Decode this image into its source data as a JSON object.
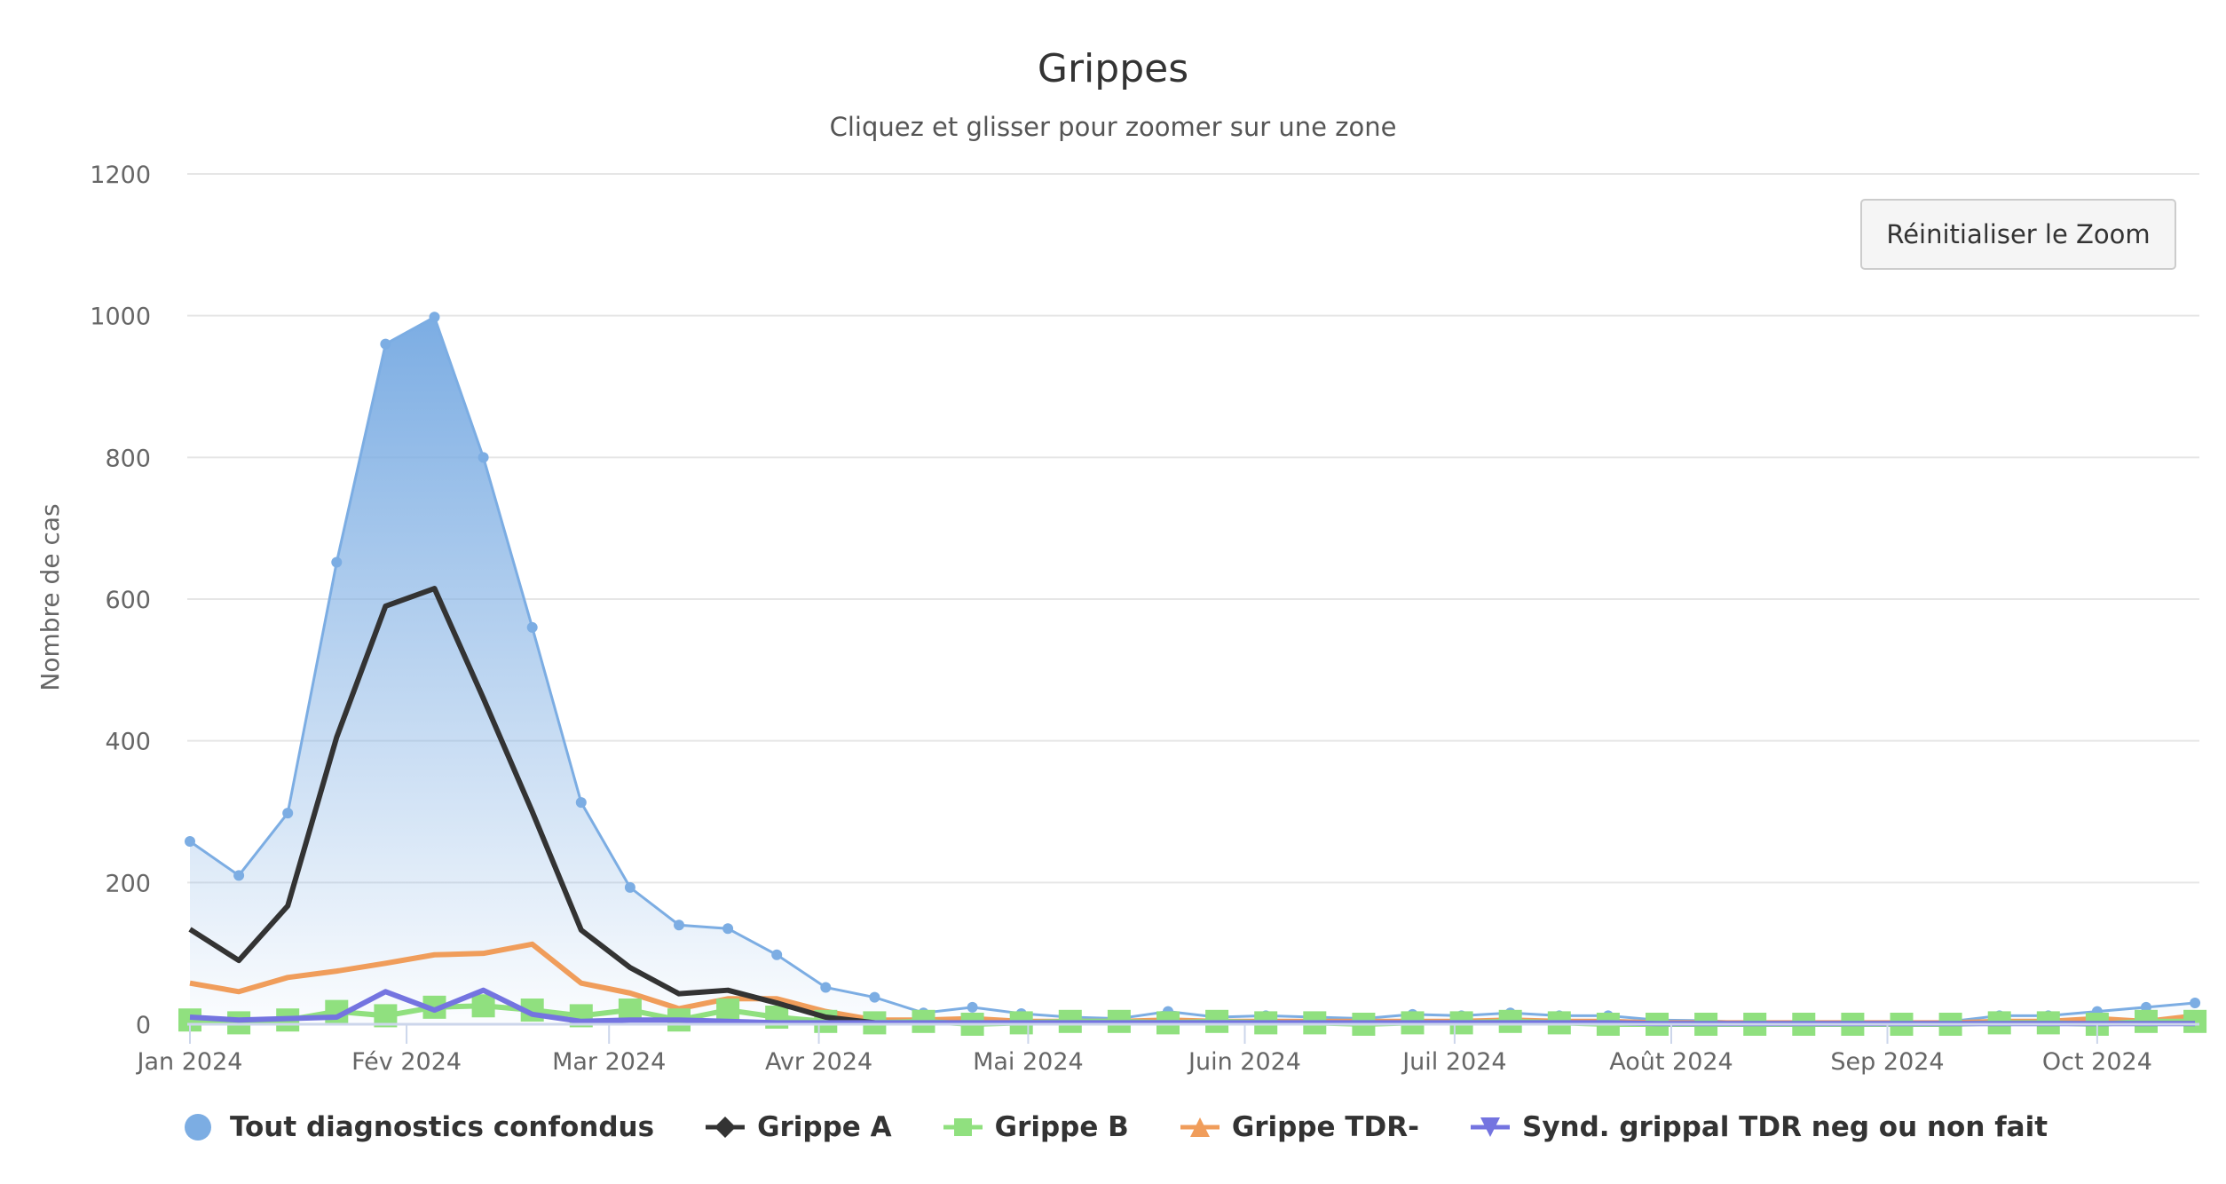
{
  "title": "Grippes",
  "subtitle": "Cliquez et glisser pour zoomer sur une zone",
  "reset_zoom_label": "Réinitialiser le Zoom",
  "colors": {
    "tout": "#7cade3",
    "grippe_a": "#333333",
    "grippe_b": "#90e07f",
    "grippe_tdr": "#f09d5b",
    "synd": "#7474e0",
    "grid": "#e6e6e6",
    "axis": "#ccd6eb"
  },
  "legend": [
    {
      "label": "Tout diagnostics confondus",
      "symbol": "circle",
      "color": "#7cade3"
    },
    {
      "label": "Grippe A",
      "symbol": "diamond",
      "color": "#333333"
    },
    {
      "label": "Grippe B",
      "symbol": "square",
      "color": "#90e07f"
    },
    {
      "label": "Grippe TDR-",
      "symbol": "triangle",
      "color": "#f09d5b"
    },
    {
      "label": "Synd. grippal TDR neg ou non fait",
      "symbol": "triangle-down",
      "color": "#7474e0"
    }
  ],
  "chart_data": {
    "type": "line",
    "title": "Grippes",
    "subtitle": "Cliquez et glisser pour zoomer sur une zone",
    "xlabel": "",
    "ylabel": "Nombre de cas",
    "ylim": [
      0,
      1200
    ],
    "yticks": [
      0,
      200,
      400,
      600,
      800,
      1000,
      1200
    ],
    "xtick_labels": [
      "Jan 2024",
      "Fév 2024",
      "Mar 2024",
      "Avr 2024",
      "Mai 2024",
      "Juin 2024",
      "Juil 2024",
      "Août 2024",
      "Sep 2024",
      "Oct 2024"
    ],
    "x_tick_week_index": [
      0,
      4.43,
      8.57,
      12.86,
      17.14,
      21.57,
      25.86,
      30.29,
      34.71,
      39.0
    ],
    "grid": true,
    "legend_position": "bottom",
    "x_interval": "weekly",
    "series": [
      {
        "name": "Tout diagnostics confondus",
        "type": "area",
        "values": [
          258,
          210,
          298,
          652,
          960,
          998,
          800,
          560,
          313,
          193,
          140,
          135,
          98,
          52,
          38,
          16,
          24,
          15,
          10,
          8,
          18,
          10,
          12,
          10,
          8,
          14,
          12,
          16,
          12,
          12,
          6,
          5,
          2,
          2,
          4,
          2,
          4,
          12,
          12,
          18,
          24,
          30
        ]
      },
      {
        "name": "Grippe A",
        "type": "line",
        "values": [
          134,
          90,
          167,
          405,
          590,
          615,
          460,
          300,
          133,
          80,
          43,
          48,
          30,
          10,
          2,
          1,
          1,
          1,
          1,
          1,
          1,
          1,
          1,
          1,
          1,
          1,
          1,
          1,
          1,
          1,
          1,
          1,
          1,
          1,
          1,
          1,
          1,
          1,
          1,
          1,
          2,
          2
        ]
      },
      {
        "name": "Grippe B",
        "type": "line",
        "values": [
          6,
          2,
          6,
          18,
          12,
          24,
          26,
          20,
          12,
          20,
          6,
          20,
          10,
          4,
          2,
          4,
          0,
          2,
          4,
          4,
          2,
          4,
          2,
          2,
          0,
          2,
          2,
          4,
          2,
          0,
          0,
          0,
          0,
          0,
          0,
          0,
          0,
          2,
          2,
          0,
          4,
          4
        ]
      },
      {
        "name": "Grippe TDR-",
        "type": "line",
        "values": [
          58,
          46,
          66,
          75,
          86,
          98,
          100,
          113,
          58,
          44,
          22,
          36,
          36,
          18,
          6,
          6,
          8,
          4,
          4,
          4,
          6,
          4,
          4,
          4,
          4,
          4,
          4,
          6,
          4,
          4,
          2,
          2,
          2,
          2,
          2,
          2,
          2,
          4,
          4,
          8,
          4,
          12
        ]
      },
      {
        "name": "Synd. grippal TDR neg ou non fait",
        "type": "line",
        "values": [
          10,
          6,
          8,
          10,
          46,
          20,
          48,
          14,
          4,
          6,
          6,
          4,
          2,
          2,
          2,
          2,
          2,
          2,
          2,
          2,
          2,
          2,
          2,
          2,
          2,
          2,
          2,
          2,
          2,
          2,
          1,
          1,
          1,
          1,
          1,
          1,
          1,
          1,
          1,
          1,
          1,
          1
        ]
      }
    ]
  }
}
